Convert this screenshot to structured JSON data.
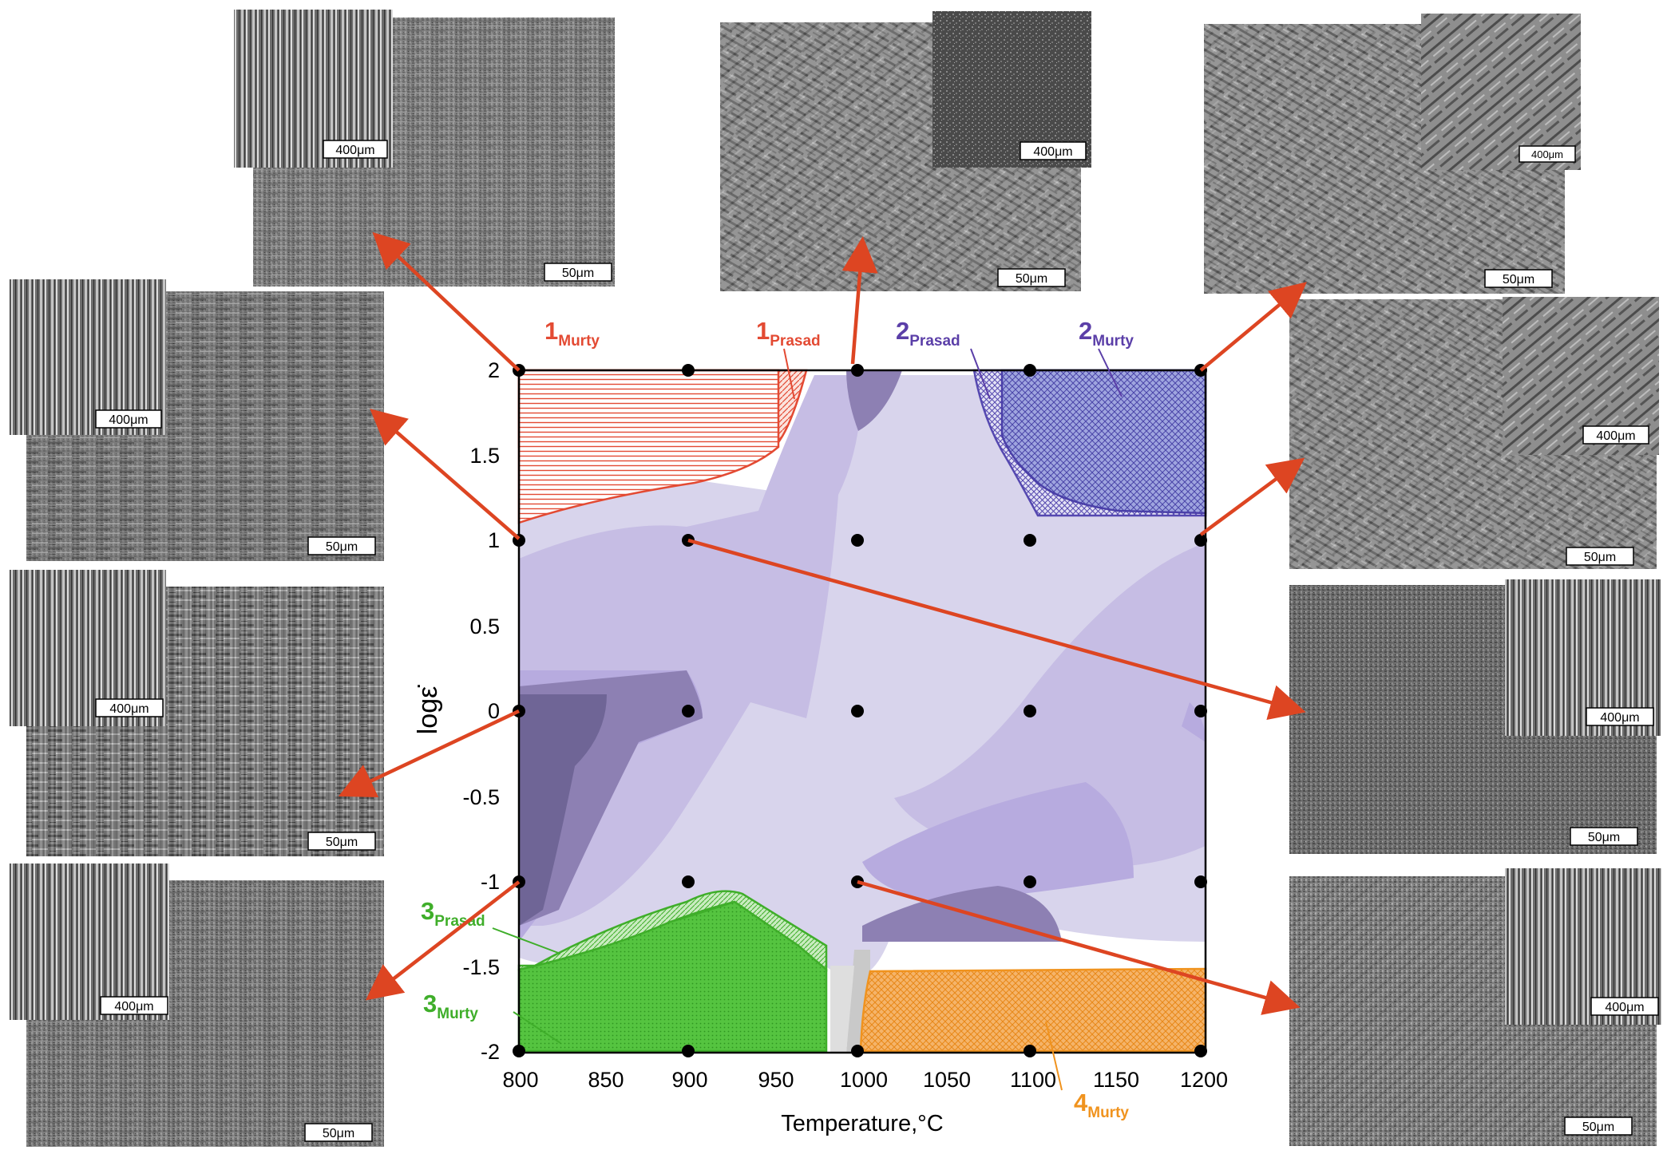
{
  "chart_data": {
    "type": "contour",
    "xlabel": "Temperature,°C",
    "ylabel": "logε̇",
    "xlim": [
      800,
      1200
    ],
    "ylim": [
      -2,
      2
    ],
    "xticks": [
      "800",
      "850",
      "900",
      "950",
      "1000",
      "1050",
      "1100",
      "1150",
      "1200"
    ],
    "yticks": [
      "2",
      "1.5",
      "1",
      "0.5",
      "0",
      "-0.5",
      "-1",
      "-1.5",
      "-2"
    ],
    "test_points": {
      "temperatures": [
        800,
        900,
        1000,
        1100,
        1200
      ],
      "log_strain_rates": [
        2,
        1,
        0,
        -1,
        -2
      ]
    },
    "regions": [
      {
        "label": "1",
        "subscript": "Murty",
        "color": "#e34a33"
      },
      {
        "label": "1",
        "subscript": "Prasad",
        "color": "#e34a33"
      },
      {
        "label": "2",
        "subscript": "Prasad",
        "color": "#5b3fa8"
      },
      {
        "label": "2",
        "subscript": "Murty",
        "color": "#5b3fa8"
      },
      {
        "label": "3",
        "subscript": "Prasad",
        "color": "#3fae2a"
      },
      {
        "label": "3",
        "subscript": "Murty",
        "color": "#3fae2a"
      },
      {
        "label": "4",
        "subscript": "Murty",
        "color": "#f0931e"
      }
    ]
  },
  "micrographs": {
    "scale_large": "400μm",
    "scale_small": "50μm",
    "arrow_color": "#dd4522"
  }
}
